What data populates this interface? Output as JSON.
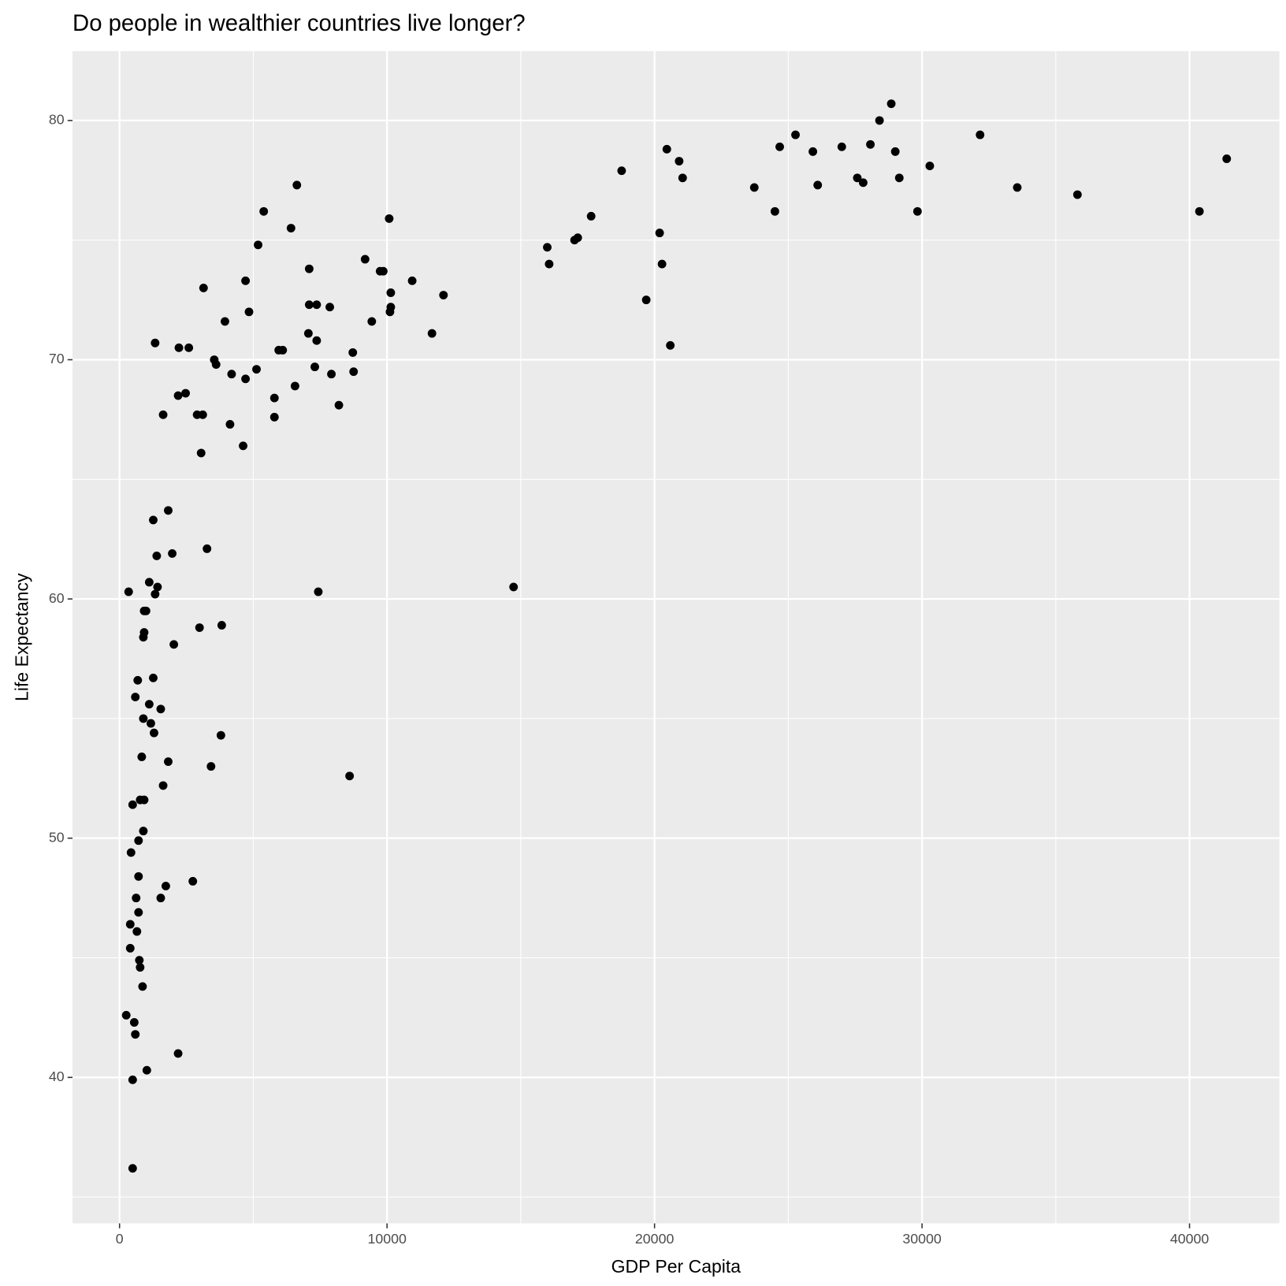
{
  "chart_data": {
    "type": "scatter",
    "title": "Do people in wealthier countries live longer?",
    "x_label": "GDP Per Capita",
    "y_label": "Life Expectancy",
    "color": "#000000",
    "grid": true,
    "xlim": [
      -1757,
      43360
    ],
    "ylim": [
      33.9,
      82.9
    ],
    "xticks": [
      0,
      10000,
      20000,
      30000,
      40000
    ],
    "yticks": [
      40,
      50,
      60,
      70,
      80
    ],
    "x": [
      28850,
      28410,
      25270,
      32170,
      20460,
      24680,
      28070,
      27000,
      25920,
      29000,
      20920,
      41390,
      18770,
      30290,
      21050,
      27580,
      29150,
      27800,
      26100,
      23730,
      33560,
      35810,
      24500,
      29830,
      40370,
      17630,
      17130,
      17010,
      20190,
      15990,
      16060,
      20280,
      19690,
      20590,
      14730,
      6630,
      5390,
      10080,
      6410,
      5180,
      9180,
      9740,
      9860,
      7090,
      4710,
      10940,
      3140,
      10140,
      12110,
      7090,
      7370,
      7860,
      10140,
      10110,
      4840,
      3940,
      9430,
      7060,
      11680,
      7370,
      1330,
      2220,
      2590,
      5950,
      6100,
      8720,
      3540,
      3610,
      7300,
      5120,
      4190,
      7920,
      8750,
      4710,
      6560,
      2470,
      2190,
      5790,
      8200,
      1630,
      2900,
      3110,
      5790,
      4130,
      4620,
      3050,
      1260,
      1820,
      3270,
      1390,
      1970,
      1110,
      1420,
      340,
      1330,
      7430,
      920,
      990,
      2990,
      3820,
      920,
      890,
      2030,
      680,
      1260,
      590,
      1110,
      1540,
      890,
      1170,
      1290,
      3790,
      830,
      1820,
      3420,
      8600,
      1630,
      920,
      770,
      490,
      890,
      710,
      430,
      710,
      2740,
      1730,
      620,
      1540,
      710,
      400,
      650,
      400,
      740,
      770,
      860,
      250,
      550,
      590,
      2190,
      1020,
      490,
      490
    ],
    "y": [
      80.7,
      80.0,
      79.4,
      79.4,
      78.8,
      78.9,
      79.0,
      78.9,
      78.7,
      78.7,
      78.3,
      78.4,
      77.9,
      78.1,
      77.6,
      77.6,
      77.6,
      77.4,
      77.3,
      77.2,
      77.2,
      76.9,
      76.2,
      76.2,
      76.2,
      76.0,
      75.1,
      75.0,
      75.3,
      74.7,
      74.0,
      74.0,
      72.5,
      70.6,
      60.5,
      77.3,
      76.2,
      75.9,
      75.5,
      74.8,
      74.2,
      73.7,
      73.7,
      73.8,
      73.3,
      73.3,
      73.0,
      72.8,
      72.7,
      72.3,
      72.3,
      72.2,
      72.2,
      72.0,
      72.0,
      71.6,
      71.6,
      71.1,
      71.1,
      70.8,
      70.7,
      70.5,
      70.5,
      70.4,
      70.4,
      70.3,
      70.0,
      69.8,
      69.7,
      69.6,
      69.4,
      69.4,
      69.5,
      69.2,
      68.9,
      68.6,
      68.5,
      68.4,
      68.1,
      67.7,
      67.7,
      67.7,
      67.6,
      67.3,
      66.4,
      66.1,
      63.3,
      63.7,
      62.1,
      61.8,
      61.9,
      60.7,
      60.5,
      60.3,
      60.2,
      60.3,
      59.5,
      59.5,
      58.8,
      58.9,
      58.6,
      58.4,
      58.1,
      56.6,
      56.7,
      55.9,
      55.6,
      55.4,
      55.0,
      54.8,
      54.4,
      54.3,
      53.4,
      53.2,
      53.0,
      52.6,
      52.2,
      51.6,
      51.6,
      51.4,
      50.3,
      49.9,
      49.4,
      48.4,
      48.2,
      48.0,
      47.5,
      47.5,
      46.9,
      46.4,
      46.1,
      45.4,
      44.9,
      44.6,
      43.8,
      42.6,
      42.3,
      41.8,
      41.0,
      40.3,
      39.9,
      36.2
    ]
  }
}
